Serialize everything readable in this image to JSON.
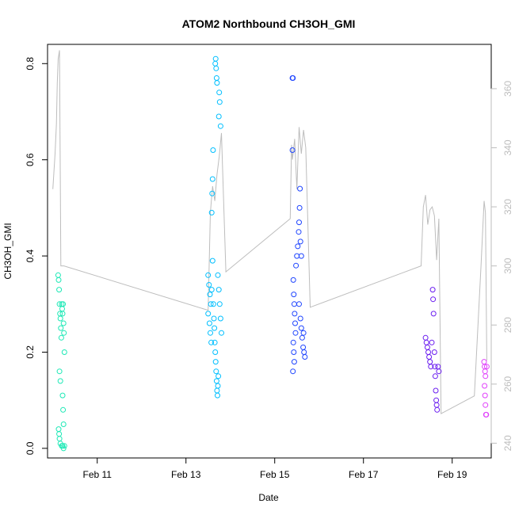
{
  "chart_data": {
    "type": "scatter",
    "title": "ATOM2 Northbound CH3OH_GMI",
    "xlabel": "Date",
    "ylabel": "CH3OH_GMI",
    "x_unit": "days since Feb 10 00:00",
    "xlim": [
      9.88,
      19.88
    ],
    "ylim": [
      -0.02,
      0.84
    ],
    "x_ticks": [
      {
        "value": 11,
        "label": "Feb 11"
      },
      {
        "value": 13,
        "label": "Feb 13"
      },
      {
        "value": 15,
        "label": "Feb 15"
      },
      {
        "value": 17,
        "label": "Feb 17"
      },
      {
        "value": 19,
        "label": "Feb 19"
      }
    ],
    "y_ticks": [
      0.0,
      0.2,
      0.4,
      0.6,
      0.8
    ],
    "y_tick_labels": [
      "0.0",
      "0.2",
      "0.4",
      "0.6",
      "0.8"
    ],
    "secondary_axis": {
      "side": "right",
      "color": "#bdbdbd",
      "ylim": [
        235,
        375
      ],
      "ticks": [
        240,
        260,
        280,
        300,
        320,
        340,
        360
      ],
      "tick_labels": [
        "240",
        "260",
        "280",
        "300",
        "320",
        "340",
        "360"
      ]
    },
    "grid": false,
    "legend": "none",
    "points": [
      {
        "x": 10.12,
        "y": 0.36,
        "color": "#1de9b6"
      },
      {
        "x": 10.13,
        "y": 0.35,
        "color": "#1de9b6"
      },
      {
        "x": 10.14,
        "y": 0.33,
        "color": "#1de9b6"
      },
      {
        "x": 10.15,
        "y": 0.3,
        "color": "#1de9b6"
      },
      {
        "x": 10.16,
        "y": 0.28,
        "color": "#1de9b6"
      },
      {
        "x": 10.17,
        "y": 0.27,
        "color": "#1de9b6"
      },
      {
        "x": 10.18,
        "y": 0.25,
        "color": "#1de9b6"
      },
      {
        "x": 10.19,
        "y": 0.23,
        "color": "#1de9b6"
      },
      {
        "x": 10.15,
        "y": 0.16,
        "color": "#1de9b6"
      },
      {
        "x": 10.17,
        "y": 0.14,
        "color": "#1de9b6"
      },
      {
        "x": 10.13,
        "y": 0.04,
        "color": "#1de9b6"
      },
      {
        "x": 10.14,
        "y": 0.03,
        "color": "#1de9b6"
      },
      {
        "x": 10.15,
        "y": 0.02,
        "color": "#1de9b6"
      },
      {
        "x": 10.17,
        "y": 0.01,
        "color": "#1de9b6"
      },
      {
        "x": 10.2,
        "y": 0.005,
        "color": "#1de9b6"
      },
      {
        "x": 10.22,
        "y": 0.005,
        "color": "#1de9b6"
      },
      {
        "x": 10.24,
        "y": 0.0,
        "color": "#1de9b6"
      },
      {
        "x": 10.26,
        "y": 0.005,
        "color": "#1de9b6"
      },
      {
        "x": 10.2,
        "y": 0.3,
        "color": "#1de9b6"
      },
      {
        "x": 10.21,
        "y": 0.29,
        "color": "#1de9b6"
      },
      {
        "x": 10.22,
        "y": 0.28,
        "color": "#1de9b6"
      },
      {
        "x": 10.23,
        "y": 0.3,
        "color": "#1de9b6"
      },
      {
        "x": 10.24,
        "y": 0.26,
        "color": "#1de9b6"
      },
      {
        "x": 10.25,
        "y": 0.24,
        "color": "#1de9b6"
      },
      {
        "x": 10.26,
        "y": 0.2,
        "color": "#1de9b6"
      },
      {
        "x": 10.22,
        "y": 0.11,
        "color": "#1de9b6"
      },
      {
        "x": 10.23,
        "y": 0.08,
        "color": "#1de9b6"
      },
      {
        "x": 10.24,
        "y": 0.05,
        "color": "#1de9b6"
      },
      {
        "x": 13.5,
        "y": 0.36,
        "color": "#00bfff"
      },
      {
        "x": 13.52,
        "y": 0.34,
        "color": "#00bfff"
      },
      {
        "x": 13.54,
        "y": 0.32,
        "color": "#00bfff"
      },
      {
        "x": 13.56,
        "y": 0.3,
        "color": "#00bfff"
      },
      {
        "x": 13.5,
        "y": 0.28,
        "color": "#00bfff"
      },
      {
        "x": 13.53,
        "y": 0.26,
        "color": "#00bfff"
      },
      {
        "x": 13.55,
        "y": 0.24,
        "color": "#00bfff"
      },
      {
        "x": 13.57,
        "y": 0.22,
        "color": "#00bfff"
      },
      {
        "x": 13.58,
        "y": 0.33,
        "color": "#00bfff"
      },
      {
        "x": 13.6,
        "y": 0.39,
        "color": "#00bfff"
      },
      {
        "x": 13.58,
        "y": 0.49,
        "color": "#00bfff"
      },
      {
        "x": 13.59,
        "y": 0.53,
        "color": "#00bfff"
      },
      {
        "x": 13.6,
        "y": 0.56,
        "color": "#00bfff"
      },
      {
        "x": 13.61,
        "y": 0.62,
        "color": "#00bfff"
      },
      {
        "x": 13.62,
        "y": 0.3,
        "color": "#00bfff"
      },
      {
        "x": 13.63,
        "y": 0.27,
        "color": "#00bfff"
      },
      {
        "x": 13.64,
        "y": 0.25,
        "color": "#00bfff"
      },
      {
        "x": 13.65,
        "y": 0.22,
        "color": "#00bfff"
      },
      {
        "x": 13.66,
        "y": 0.2,
        "color": "#00bfff"
      },
      {
        "x": 13.67,
        "y": 0.18,
        "color": "#00bfff"
      },
      {
        "x": 13.68,
        "y": 0.16,
        "color": "#00bfff"
      },
      {
        "x": 13.69,
        "y": 0.14,
        "color": "#00bfff"
      },
      {
        "x": 13.7,
        "y": 0.12,
        "color": "#00bfff"
      },
      {
        "x": 13.71,
        "y": 0.11,
        "color": "#00bfff"
      },
      {
        "x": 13.72,
        "y": 0.13,
        "color": "#00bfff"
      },
      {
        "x": 13.73,
        "y": 0.15,
        "color": "#00bfff"
      },
      {
        "x": 13.66,
        "y": 0.8,
        "color": "#00bfff"
      },
      {
        "x": 13.67,
        "y": 0.81,
        "color": "#00bfff"
      },
      {
        "x": 13.68,
        "y": 0.79,
        "color": "#00bfff"
      },
      {
        "x": 13.69,
        "y": 0.77,
        "color": "#00bfff"
      },
      {
        "x": 13.7,
        "y": 0.76,
        "color": "#00bfff"
      },
      {
        "x": 13.75,
        "y": 0.74,
        "color": "#00bfff"
      },
      {
        "x": 13.76,
        "y": 0.72,
        "color": "#00bfff"
      },
      {
        "x": 13.74,
        "y": 0.69,
        "color": "#00bfff"
      },
      {
        "x": 13.78,
        "y": 0.67,
        "color": "#00bfff"
      },
      {
        "x": 13.72,
        "y": 0.36,
        "color": "#00bfff"
      },
      {
        "x": 13.74,
        "y": 0.33,
        "color": "#00bfff"
      },
      {
        "x": 13.76,
        "y": 0.3,
        "color": "#00bfff"
      },
      {
        "x": 13.78,
        "y": 0.27,
        "color": "#00bfff"
      },
      {
        "x": 13.8,
        "y": 0.24,
        "color": "#00bfff"
      },
      {
        "x": 15.4,
        "y": 0.77,
        "color": "#1f45ff"
      },
      {
        "x": 15.41,
        "y": 0.77,
        "color": "#1f45ff"
      },
      {
        "x": 15.4,
        "y": 0.62,
        "color": "#1f45ff"
      },
      {
        "x": 15.42,
        "y": 0.35,
        "color": "#1f45ff"
      },
      {
        "x": 15.43,
        "y": 0.32,
        "color": "#1f45ff"
      },
      {
        "x": 15.44,
        "y": 0.3,
        "color": "#1f45ff"
      },
      {
        "x": 15.45,
        "y": 0.28,
        "color": "#1f45ff"
      },
      {
        "x": 15.46,
        "y": 0.26,
        "color": "#1f45ff"
      },
      {
        "x": 15.47,
        "y": 0.24,
        "color": "#1f45ff"
      },
      {
        "x": 15.42,
        "y": 0.22,
        "color": "#1f45ff"
      },
      {
        "x": 15.43,
        "y": 0.2,
        "color": "#1f45ff"
      },
      {
        "x": 15.44,
        "y": 0.18,
        "color": "#1f45ff"
      },
      {
        "x": 15.41,
        "y": 0.16,
        "color": "#1f45ff"
      },
      {
        "x": 15.48,
        "y": 0.38,
        "color": "#1f45ff"
      },
      {
        "x": 15.5,
        "y": 0.4,
        "color": "#1f45ff"
      },
      {
        "x": 15.52,
        "y": 0.42,
        "color": "#1f45ff"
      },
      {
        "x": 15.54,
        "y": 0.45,
        "color": "#1f45ff"
      },
      {
        "x": 15.55,
        "y": 0.47,
        "color": "#1f45ff"
      },
      {
        "x": 15.56,
        "y": 0.5,
        "color": "#1f45ff"
      },
      {
        "x": 15.57,
        "y": 0.54,
        "color": "#1f45ff"
      },
      {
        "x": 15.58,
        "y": 0.43,
        "color": "#1f45ff"
      },
      {
        "x": 15.6,
        "y": 0.4,
        "color": "#1f45ff"
      },
      {
        "x": 15.55,
        "y": 0.3,
        "color": "#1f45ff"
      },
      {
        "x": 15.58,
        "y": 0.27,
        "color": "#1f45ff"
      },
      {
        "x": 15.6,
        "y": 0.25,
        "color": "#1f45ff"
      },
      {
        "x": 15.62,
        "y": 0.23,
        "color": "#1f45ff"
      },
      {
        "x": 15.64,
        "y": 0.21,
        "color": "#1f45ff"
      },
      {
        "x": 15.66,
        "y": 0.2,
        "color": "#1f45ff"
      },
      {
        "x": 15.68,
        "y": 0.19,
        "color": "#1f45ff"
      },
      {
        "x": 15.65,
        "y": 0.24,
        "color": "#1f45ff"
      },
      {
        "x": 18.4,
        "y": 0.23,
        "color": "#6a1cf0"
      },
      {
        "x": 18.42,
        "y": 0.22,
        "color": "#6a1cf0"
      },
      {
        "x": 18.44,
        "y": 0.21,
        "color": "#6a1cf0"
      },
      {
        "x": 18.46,
        "y": 0.2,
        "color": "#6a1cf0"
      },
      {
        "x": 18.48,
        "y": 0.19,
        "color": "#6a1cf0"
      },
      {
        "x": 18.5,
        "y": 0.18,
        "color": "#6a1cf0"
      },
      {
        "x": 18.52,
        "y": 0.17,
        "color": "#6a1cf0"
      },
      {
        "x": 18.54,
        "y": 0.22,
        "color": "#6a1cf0"
      },
      {
        "x": 18.56,
        "y": 0.33,
        "color": "#6a1cf0"
      },
      {
        "x": 18.57,
        "y": 0.31,
        "color": "#6a1cf0"
      },
      {
        "x": 18.58,
        "y": 0.28,
        "color": "#6a1cf0"
      },
      {
        "x": 18.6,
        "y": 0.2,
        "color": "#6a1cf0"
      },
      {
        "x": 18.61,
        "y": 0.17,
        "color": "#6a1cf0"
      },
      {
        "x": 18.62,
        "y": 0.15,
        "color": "#6a1cf0"
      },
      {
        "x": 18.63,
        "y": 0.12,
        "color": "#6a1cf0"
      },
      {
        "x": 18.64,
        "y": 0.1,
        "color": "#6a1cf0"
      },
      {
        "x": 18.65,
        "y": 0.09,
        "color": "#6a1cf0"
      },
      {
        "x": 18.66,
        "y": 0.08,
        "color": "#6a1cf0"
      },
      {
        "x": 18.68,
        "y": 0.17,
        "color": "#6a1cf0"
      },
      {
        "x": 18.7,
        "y": 0.16,
        "color": "#6a1cf0"
      },
      {
        "x": 19.72,
        "y": 0.18,
        "color": "#e040fb"
      },
      {
        "x": 19.73,
        "y": 0.17,
        "color": "#e040fb"
      },
      {
        "x": 19.74,
        "y": 0.16,
        "color": "#e040fb"
      },
      {
        "x": 19.75,
        "y": 0.15,
        "color": "#e040fb"
      },
      {
        "x": 19.73,
        "y": 0.13,
        "color": "#e040fb"
      },
      {
        "x": 19.74,
        "y": 0.11,
        "color": "#e040fb"
      },
      {
        "x": 19.75,
        "y": 0.09,
        "color": "#e040fb"
      },
      {
        "x": 19.76,
        "y": 0.07,
        "color": "#e040fb"
      },
      {
        "x": 19.77,
        "y": 0.07,
        "color": "#e040fb"
      },
      {
        "x": 19.78,
        "y": 0.17,
        "color": "#e040fb"
      }
    ],
    "line_series": {
      "color": "#bdbdbd",
      "axis": "secondary",
      "x": [
        10.0,
        10.05,
        10.08,
        10.1,
        10.12,
        10.15,
        10.18,
        10.2,
        10.22,
        10.25,
        13.5,
        13.55,
        13.6,
        13.65,
        13.7,
        13.75,
        13.8,
        13.9,
        15.35,
        15.38,
        15.4,
        15.45,
        15.5,
        15.55,
        15.6,
        15.65,
        15.7,
        15.8,
        18.3,
        18.35,
        18.4,
        18.45,
        18.5,
        18.55,
        18.6,
        18.65,
        18.7,
        18.75,
        19.5,
        19.65,
        19.72,
        19.75,
        19.78
      ],
      "y": [
        326,
        338,
        348,
        362,
        370,
        373,
        300,
        300,
        300,
        300,
        285,
        318,
        327,
        322,
        331,
        337,
        345,
        298,
        316,
        341,
        336,
        343,
        326,
        347,
        338,
        346,
        340,
        286,
        300,
        320,
        324,
        314,
        319,
        320,
        317,
        302,
        316,
        250,
        256,
        300,
        322,
        318,
        268
      ]
    }
  }
}
